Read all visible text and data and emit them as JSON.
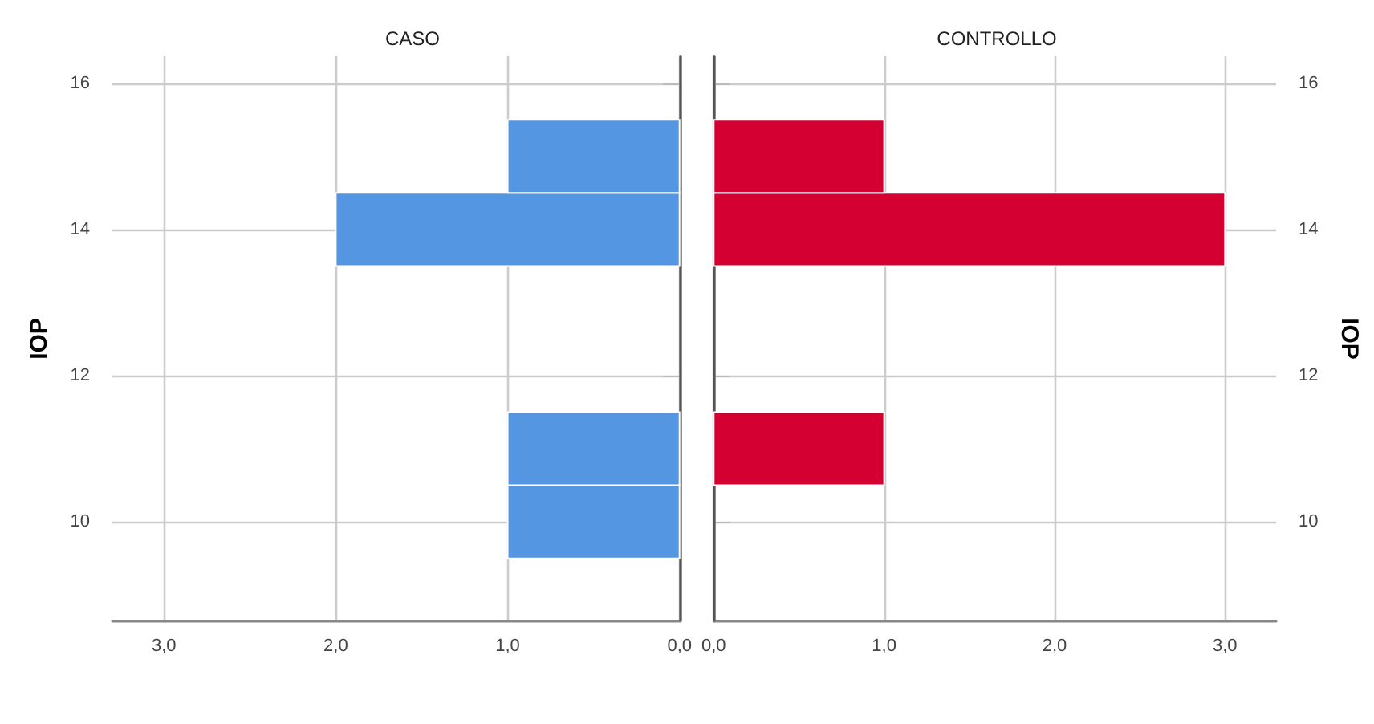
{
  "chart_data": [
    {
      "type": "histogram",
      "orientation": "horizontal",
      "title": "CASO",
      "ylabel": "IOP",
      "color": "#5596e3",
      "bins": [
        9.5,
        10.5,
        11.5,
        12.5,
        13.5,
        14.5,
        15.5
      ],
      "values": [
        1,
        1,
        0,
        0,
        2,
        1
      ],
      "xlim": [
        3.3,
        0
      ],
      "xticks": [
        {
          "value": 3,
          "label": "3,0"
        },
        {
          "value": 2,
          "label": "2,0"
        },
        {
          "value": 1,
          "label": "1,0"
        },
        {
          "value": 0,
          "label": "0,0"
        }
      ],
      "ylim": [
        8.64,
        16.37
      ],
      "yticks": [
        10,
        12,
        14,
        16
      ],
      "grid": true
    },
    {
      "type": "histogram",
      "orientation": "horizontal",
      "title": "CONTROLLO",
      "ylabel": "IOP",
      "color": "#d50032",
      "bins": [
        9.5,
        10.5,
        11.5,
        12.5,
        13.5,
        14.5,
        15.5
      ],
      "values": [
        0,
        1,
        0,
        0,
        3,
        1
      ],
      "xlim": [
        0,
        3.3
      ],
      "xticks": [
        {
          "value": 0,
          "label": "0,0"
        },
        {
          "value": 1,
          "label": "1,0"
        },
        {
          "value": 2,
          "label": "2,0"
        },
        {
          "value": 3,
          "label": "3,0"
        }
      ],
      "ylim": [
        8.64,
        16.37
      ],
      "yticks": [
        10,
        12,
        14,
        16
      ],
      "grid": true
    }
  ]
}
